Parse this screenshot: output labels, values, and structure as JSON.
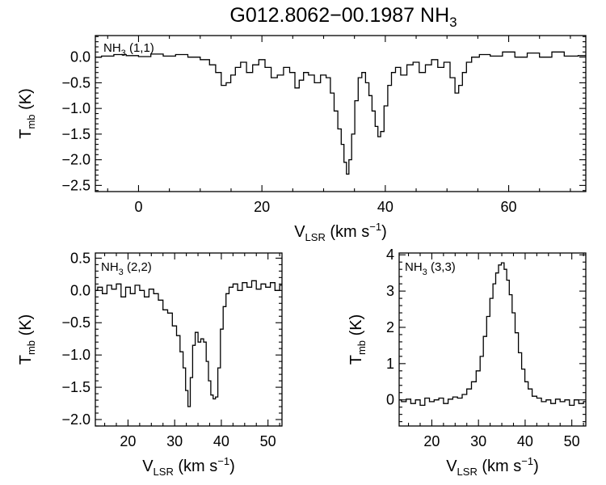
{
  "figure": {
    "title_main": "G012.8062−00.1987 NH",
    "title_sub": "3"
  },
  "chart_data": [
    {
      "type": "line",
      "panel_label_main": "NH",
      "panel_label_sub": "3",
      "panel_label_rest": " (1,1)",
      "xlabel_main": "V",
      "xlabel_sub": "LSR",
      "xlabel_rest": " (km s",
      "xlabel_sup": "−1",
      "xlabel_close": ")",
      "ylabel_main": "T",
      "ylabel_sub": "mb",
      "ylabel_rest": " (K)",
      "xlim": [
        -7,
        72.5
      ],
      "ylim": [
        -2.62,
        0.42
      ],
      "xticks": [
        0,
        20,
        40,
        60
      ],
      "xtick_labels": [
        "0",
        "20",
        "40",
        "60"
      ],
      "yticks": [
        0.0,
        -0.5,
        -1.0,
        -1.5,
        -2.0,
        -2.5
      ],
      "ytick_labels": [
        "0.0",
        "−0.5",
        "−1.0",
        "−1.5",
        "−2.0",
        "−2.5"
      ],
      "x": [
        -7,
        -5,
        -3,
        -1,
        1,
        3,
        5,
        7,
        9,
        11,
        12,
        13,
        13.8,
        14.6,
        15.3,
        16.1,
        17,
        18,
        19,
        20,
        21,
        22,
        23,
        24,
        25,
        25.7,
        26.4,
        27.1,
        28,
        29,
        30,
        30.8,
        31.4,
        32,
        32.6,
        33.1,
        33.5,
        33.9,
        34.3,
        34.8,
        35.3,
        35.9,
        36.5,
        37.1,
        37.6,
        38.1,
        38.6,
        39,
        39.5,
        40.1,
        40.7,
        41.3,
        42,
        43,
        44,
        45,
        46,
        47,
        48,
        49,
        50,
        51,
        51.6,
        52.2,
        52.8,
        53.5,
        54.5,
        56,
        58,
        60,
        62,
        64,
        66,
        68,
        70,
        72.5
      ],
      "y": [
        0.0,
        0.02,
        0.05,
        0.03,
        0.01,
        0.06,
        0.02,
        0.05,
        0.0,
        -0.05,
        -0.15,
        -0.3,
        -0.55,
        -0.5,
        -0.35,
        -0.2,
        -0.1,
        -0.3,
        -0.15,
        -0.05,
        -0.2,
        -0.4,
        -0.35,
        -0.2,
        -0.3,
        -0.6,
        -0.45,
        -0.3,
        -0.35,
        -0.5,
        -0.35,
        -0.4,
        -0.7,
        -1.05,
        -1.4,
        -1.7,
        -2.05,
        -2.28,
        -2.0,
        -1.5,
        -0.85,
        -0.4,
        -0.3,
        -0.5,
        -0.75,
        -1.05,
        -1.35,
        -1.55,
        -1.45,
        -0.95,
        -0.55,
        -0.3,
        -0.2,
        -0.35,
        -0.15,
        -0.1,
        -0.3,
        -0.15,
        -0.05,
        -0.2,
        -0.1,
        -0.4,
        -0.7,
        -0.55,
        -0.3,
        -0.1,
        0.0,
        0.05,
        0.02,
        0.1,
        0.0,
        0.08,
        0.0,
        0.1,
        0.02,
        0.03
      ]
    },
    {
      "type": "line",
      "panel_label_main": "NH",
      "panel_label_sub": "3",
      "panel_label_rest": " (2,2)",
      "xlabel_main": "V",
      "xlabel_sub": "LSR",
      "xlabel_rest": " (km s",
      "xlabel_sup": "−1",
      "xlabel_close": ")",
      "ylabel_main": "T",
      "ylabel_sub": "mb",
      "ylabel_rest": " (K)",
      "xlim": [
        13,
        53
      ],
      "ylim": [
        -2.1,
        0.58
      ],
      "xticks": [
        20,
        30,
        40,
        50
      ],
      "xtick_labels": [
        "20",
        "30",
        "40",
        "50"
      ],
      "yticks": [
        0.5,
        0.0,
        -0.5,
        -1.0,
        -1.5,
        -2.0
      ],
      "ytick_labels": [
        "0.5",
        "0.0",
        "−0.5",
        "−1.0",
        "−1.5",
        "−2.0"
      ],
      "x": [
        13,
        14,
        15,
        16,
        17,
        18,
        19,
        20,
        21,
        22,
        23,
        24,
        25,
        26,
        27,
        28,
        29,
        30,
        30.8,
        31.5,
        32.1,
        32.6,
        33.1,
        33.6,
        34.1,
        34.7,
        35.3,
        35.9,
        36.5,
        37,
        37.5,
        38,
        38.5,
        39,
        39.5,
        40.1,
        40.7,
        41.3,
        42,
        43,
        44,
        45,
        46,
        47,
        48,
        49,
        50,
        51,
        52,
        53
      ],
      "y": [
        0.0,
        0.05,
        -0.05,
        0.08,
        0.02,
        0.1,
        -0.1,
        0.05,
        -0.05,
        0.08,
        0.0,
        -0.1,
        0.02,
        -0.05,
        -0.15,
        -0.3,
        -0.35,
        -0.55,
        -0.7,
        -0.95,
        -1.2,
        -1.55,
        -1.8,
        -1.35,
        -0.85,
        -0.65,
        -0.8,
        -0.75,
        -0.8,
        -1.1,
        -1.4,
        -1.62,
        -1.68,
        -1.65,
        -1.2,
        -0.6,
        -0.25,
        -0.05,
        0.05,
        0.1,
        0.0,
        0.12,
        0.05,
        0.15,
        0.02,
        0.1,
        0.05,
        0.12,
        0.0,
        0.08
      ]
    },
    {
      "type": "line",
      "panel_label_main": "NH",
      "panel_label_sub": "3",
      "panel_label_rest": " (3,3)",
      "xlabel_main": "V",
      "xlabel_sub": "LSR",
      "xlabel_rest": " (km s",
      "xlabel_sup": "−1",
      "xlabel_close": ")",
      "ylabel_main": "T",
      "ylabel_sub": "mb",
      "ylabel_rest": " (K)",
      "xlim": [
        13,
        53
      ],
      "ylim": [
        -0.72,
        4.05
      ],
      "xticks": [
        20,
        30,
        40,
        50
      ],
      "xtick_labels": [
        "20",
        "30",
        "40",
        "50"
      ],
      "yticks": [
        0,
        1,
        2,
        3,
        4
      ],
      "ytick_labels": [
        "0",
        "1",
        "2",
        "3",
        "4"
      ],
      "x": [
        13,
        14,
        15,
        16,
        17,
        18,
        19,
        20,
        21,
        22,
        23,
        24,
        25,
        26,
        27,
        28,
        29,
        30,
        30.7,
        31.4,
        32.1,
        32.8,
        33.4,
        34,
        34.6,
        35.2,
        35.8,
        36.3,
        36.9,
        37.5,
        38.2,
        38.9,
        39.6,
        40.3,
        41,
        42,
        43,
        44,
        45,
        46,
        47,
        48,
        49,
        50,
        51,
        52,
        53
      ],
      "y": [
        0.0,
        -0.05,
        0.02,
        -0.1,
        0.0,
        -0.15,
        0.05,
        -0.05,
        0.0,
        0.05,
        -0.1,
        0.02,
        0.08,
        0.05,
        0.15,
        0.3,
        0.5,
        0.8,
        1.2,
        1.75,
        2.3,
        2.8,
        3.2,
        3.5,
        3.72,
        3.78,
        3.6,
        3.3,
        2.9,
        2.4,
        1.85,
        1.3,
        0.85,
        0.5,
        0.3,
        0.1,
        0.05,
        -0.05,
        0.0,
        -0.1,
        0.02,
        -0.05,
        0.0,
        -0.15,
        0.0,
        -0.1,
        -0.05
      ]
    }
  ]
}
